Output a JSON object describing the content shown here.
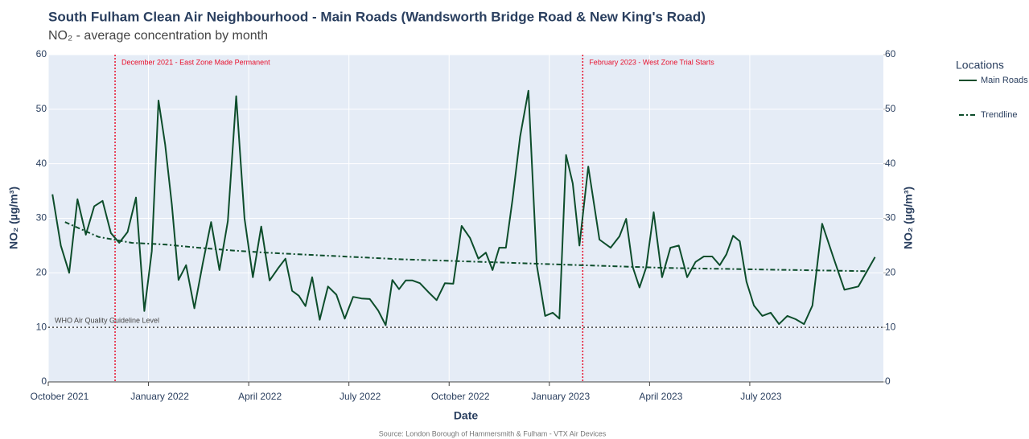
{
  "chart_data": {
    "type": "line",
    "title": "South Fulham Clean Air Neighbourhood - Main Roads (Wandsworth Bridge Road & New King's Road)",
    "subtitle": "NO₂ - average concentration by month",
    "x_label": "Date",
    "y_label": "NO₂ (µg/m³)",
    "y2_label": "NO₂ (µg/m³)",
    "source": "Source: London Borough of Hammersmith & Fulham - VTX Air Devices",
    "legend_title": "Locations",
    "legend": "right",
    "grid": true,
    "xlim": [
      "2021-10",
      "2023-10"
    ],
    "xticks": [
      {
        "value": "2021-10",
        "label": "October 2021"
      },
      {
        "value": "2022-01",
        "label": "January 2022"
      },
      {
        "value": "2022-04",
        "label": "April 2022"
      },
      {
        "value": "2022-07",
        "label": "July 2022"
      },
      {
        "value": "2022-10",
        "label": "October 2022"
      },
      {
        "value": "2023-01",
        "label": "January 2023"
      },
      {
        "value": "2023-04",
        "label": "April 2023"
      },
      {
        "value": "2023-07",
        "label": "July 2023"
      }
    ],
    "ylim": [
      0,
      60
    ],
    "yticks": [
      0,
      10,
      20,
      30,
      40,
      50,
      60
    ],
    "y2lim": [
      0,
      60
    ],
    "y2ticks": [
      0,
      10,
      20,
      30,
      40,
      50,
      60
    ],
    "series": [
      {
        "name": "Main Roads",
        "color": "#0d4d2b",
        "style": "solid",
        "x": [
          "2021-10",
          "2021-10",
          "2021-10",
          "2021-10",
          "2021-11",
          "2021-11",
          "2021-11",
          "2021-11",
          "2021-12",
          "2021-12",
          "2021-12",
          "2021-12",
          "2022-01",
          "2022-01",
          "2022-01",
          "2022-01",
          "2022-01",
          "2022-02",
          "2022-02",
          "2022-02",
          "2022-02",
          "2022-03",
          "2022-03",
          "2022-03",
          "2022-03",
          "2022-04",
          "2022-04",
          "2022-04",
          "2022-04",
          "2022-05",
          "2022-05",
          "2022-05",
          "2022-05",
          "2022-05",
          "2022-06",
          "2022-06",
          "2022-06",
          "2022-06",
          "2022-07",
          "2022-07",
          "2022-07",
          "2022-07",
          "2022-08",
          "2022-08",
          "2022-08",
          "2022-08",
          "2022-08",
          "2022-09",
          "2022-09",
          "2022-09",
          "2022-09",
          "2022-10",
          "2022-10",
          "2022-10",
          "2022-10",
          "2022-11",
          "2022-11",
          "2022-11",
          "2022-11",
          "2022-11",
          "2022-12",
          "2022-12",
          "2022-12",
          "2022-12",
          "2023-01",
          "2023-01",
          "2023-01",
          "2023-01",
          "2023-01",
          "2023-02",
          "2023-02",
          "2023-02",
          "2023-03",
          "2023-03",
          "2023-03",
          "2023-03",
          "2023-03",
          "2023-04",
          "2023-04",
          "2023-04",
          "2023-04",
          "2023-05",
          "2023-05",
          "2023-05",
          "2023-05",
          "2023-06",
          "2023-06",
          "2023-06",
          "2023-06",
          "2023-06",
          "2023-07",
          "2023-07",
          "2023-07",
          "2023-07",
          "2023-08",
          "2023-08",
          "2023-08",
          "2023-08",
          "2023-09",
          "2023-09",
          "2023-09",
          "2023-10",
          "2023-10"
        ],
        "values": [
          34.4,
          25,
          20,
          33.5,
          27,
          32.2,
          33.2,
          27.3,
          25.5,
          27.5,
          33.8,
          13,
          24,
          51.6,
          43.5,
          32.5,
          18.7,
          21.4,
          13.5,
          21.7,
          29.3,
          20.5,
          29.5,
          52.4,
          30,
          19.2,
          28.5,
          18.6,
          20.8,
          22.6,
          16.7,
          15.8,
          13.9,
          19.2,
          11.4,
          17.5,
          16,
          11.6,
          15.6,
          15.3,
          15.2,
          13.1,
          10.4,
          18.7,
          17,
          18.6,
          18.6,
          18.1,
          16.5,
          15,
          18.1,
          18,
          28.6,
          26.4,
          22.6,
          23.7,
          20.5,
          24.6,
          24.6,
          33.5,
          45,
          53.4,
          21.4,
          12.1,
          12.7,
          11.6,
          41.6,
          36.4,
          25,
          39.5,
          26.1,
          24.6,
          26.7,
          29.9,
          21,
          17.3,
          21,
          31.1,
          19.2,
          24.6,
          25,
          19.2,
          22,
          23,
          23,
          21.4,
          23.4,
          26.8,
          25.8,
          18.4,
          14,
          12.1,
          12.7,
          10.6,
          12.1,
          11.5,
          10.6,
          14,
          29,
          22.9,
          16.9,
          17.5,
          22.9
        ]
      },
      {
        "name": "Trendline",
        "color": "#0d4d2b",
        "style": "dashdot",
        "x": [
          "2021-10",
          "2021-11",
          "2021-12",
          "2022-01",
          "2022-02",
          "2022-03",
          "2022-04",
          "2022-05",
          "2022-06",
          "2022-07",
          "2022-08",
          "2022-09",
          "2022-10",
          "2022-11",
          "2022-12",
          "2023-01",
          "2023-02",
          "2023-03",
          "2023-04",
          "2023-05",
          "2023-06",
          "2023-07",
          "2023-08",
          "2023-09",
          "2023-10"
        ],
        "values": [
          29.3,
          26.6,
          25.5,
          25.2,
          24.6,
          24.1,
          23.7,
          23.4,
          23.1,
          22.8,
          22.5,
          22.3,
          22.1,
          21.9,
          21.7,
          21.5,
          21.3,
          21.1,
          20.9,
          20.8,
          20.7,
          20.6,
          20.5,
          20.4,
          20.3
        ]
      }
    ],
    "vlines": [
      {
        "x": "2021-12",
        "text": "December 2021 - East Zone Made Permanent",
        "color": "#e8112d"
      },
      {
        "x": "2023-02",
        "text": "February 2023 - West Zone Trial Starts",
        "color": "#e8112d"
      }
    ],
    "hlines": [
      {
        "y": 10,
        "text": "WHO Air Quality Guideline Level",
        "color": "#444444"
      }
    ]
  }
}
